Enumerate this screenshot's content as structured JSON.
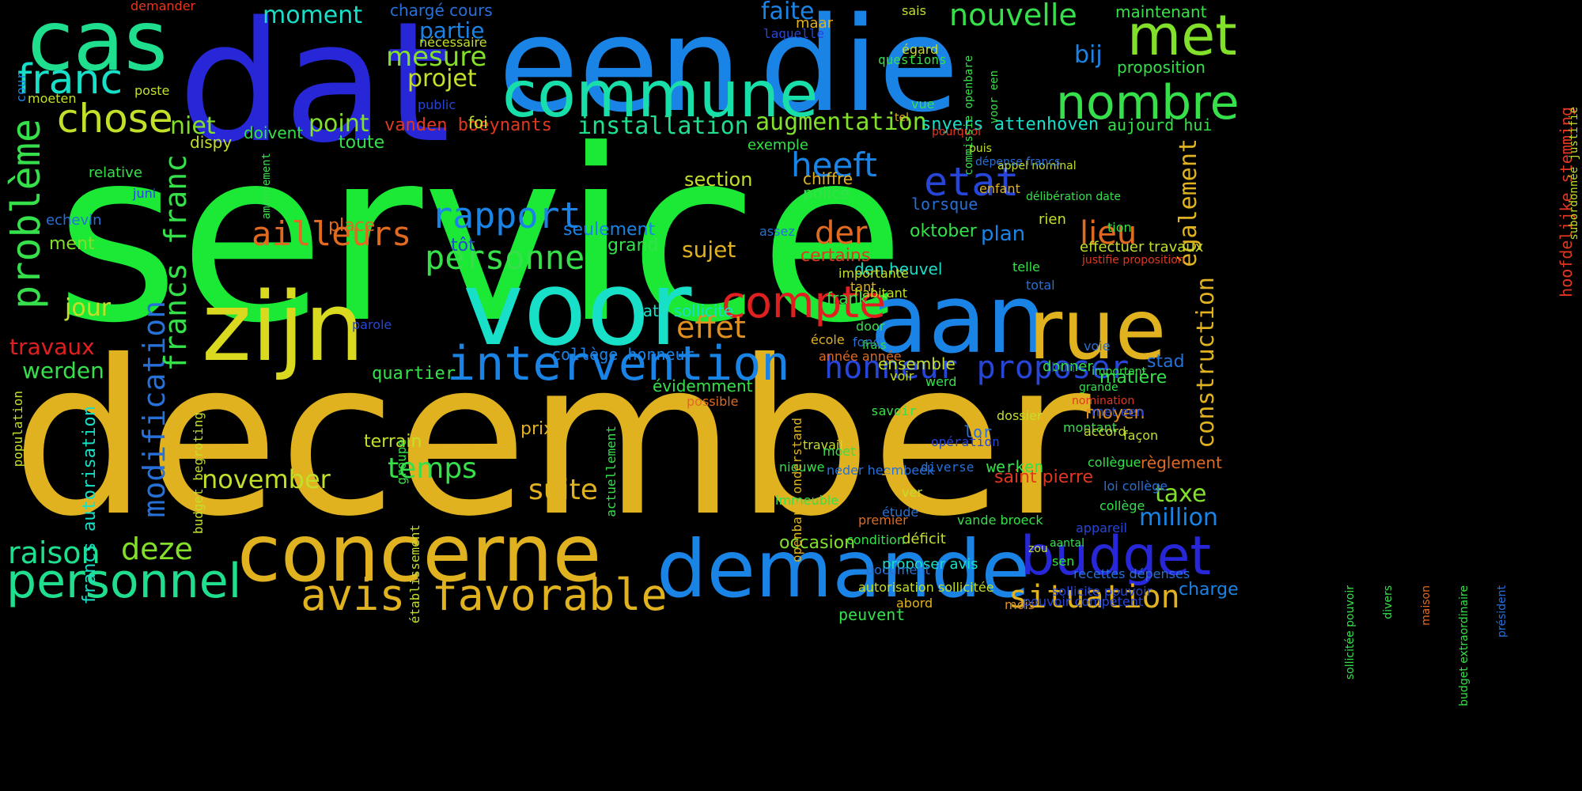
{
  "words": [
    {
      "text": "service",
      "color": "#1be936",
      "vertical": false
    },
    {
      "text": "december",
      "color": "#e0b21f",
      "vertical": false
    },
    {
      "text": "dat",
      "color": "#2727d8",
      "vertical": false
    },
    {
      "text": "een",
      "color": "#1a84e6",
      "vertical": false
    },
    {
      "text": "die",
      "color": "#1a84e6",
      "vertical": false
    },
    {
      "text": "voor",
      "color": "#18dfc8",
      "vertical": false
    },
    {
      "text": "zijn",
      "color": "#d9d920",
      "vertical": false
    },
    {
      "text": "aan",
      "color": "#1a84e6",
      "vertical": false
    },
    {
      "text": "rue",
      "color": "#e0b21f",
      "vertical": false
    },
    {
      "text": "concerne",
      "color": "#e0b21f",
      "vertical": false
    },
    {
      "text": "demande",
      "color": "#1a84e6",
      "vertical": false
    },
    {
      "text": "commune",
      "color": "#18dfaa",
      "vertical": false
    },
    {
      "text": "cas",
      "color": "#1fdf8f",
      "vertical": false
    },
    {
      "text": "met",
      "color": "#82e02a",
      "vertical": false
    },
    {
      "text": "nombre",
      "color": "#35e04a",
      "vertical": false
    },
    {
      "text": "intervention",
      "color": "#1a84e6",
      "vertical": false
    },
    {
      "text": "personnel",
      "color": "#1fdf8f",
      "vertical": false
    },
    {
      "text": "budget",
      "color": "#2727d8",
      "vertical": false
    },
    {
      "text": "avis favorable",
      "color": "#e0b21f",
      "vertical": false
    },
    {
      "text": "compte",
      "color": "#e02020",
      "vertical": false
    },
    {
      "text": "franc",
      "color": "#18dfc8",
      "vertical": false
    },
    {
      "text": "chose",
      "color": "#c3df2a",
      "vertical": false
    },
    {
      "text": "problème",
      "color": "#35e04a",
      "vertical": true
    },
    {
      "text": "etat",
      "color": "#2746d8",
      "vertical": false
    },
    {
      "text": "rapport",
      "color": "#1a84e6",
      "vertical": false
    },
    {
      "text": "ailleurs",
      "color": "#e06a20",
      "vertical": false
    },
    {
      "text": "personne",
      "color": "#35e04a",
      "vertical": false
    },
    {
      "text": "heeft",
      "color": "#1a84e6",
      "vertical": false
    },
    {
      "text": "der",
      "color": "#e06a20",
      "vertical": false
    },
    {
      "text": "lieu",
      "color": "#e06a20",
      "vertical": false
    },
    {
      "text": "honneur proposer",
      "color": "#2746d8",
      "vertical": false
    },
    {
      "text": "situation",
      "color": "#e0b21f",
      "vertical": false
    },
    {
      "text": "raison",
      "color": "#1fdf8f",
      "vertical": false
    },
    {
      "text": "deze",
      "color": "#82e02a",
      "vertical": false
    },
    {
      "text": "modification",
      "color": "#2770d8",
      "vertical": true
    },
    {
      "text": "francs franc",
      "color": "#35e04a",
      "vertical": true
    },
    {
      "text": "effet",
      "color": "#e0901f",
      "vertical": false
    },
    {
      "text": "temps",
      "color": "#35e04a",
      "vertical": false
    },
    {
      "text": "november",
      "color": "#c3df2a",
      "vertical": false
    },
    {
      "text": "suite",
      "color": "#e0b21f",
      "vertical": false
    },
    {
      "text": "également",
      "color": "#e0b21f",
      "vertical": true
    },
    {
      "text": "construction",
      "color": "#e0b21f",
      "vertical": true
    },
    {
      "text": "million",
      "color": "#1a84e6",
      "vertical": false
    },
    {
      "text": "taxe",
      "color": "#82e02a",
      "vertical": false
    },
    {
      "text": "nouvelle",
      "color": "#35e04a",
      "vertical": false
    },
    {
      "text": "mesure",
      "color": "#82e02a",
      "vertical": false
    },
    {
      "text": "projet",
      "color": "#c3df2a",
      "vertical": false
    },
    {
      "text": "partie",
      "color": "#1a84e6",
      "vertical": false
    },
    {
      "text": "moment",
      "color": "#18dfc8",
      "vertical": false
    },
    {
      "text": "faite",
      "color": "#1a84e6",
      "vertical": false
    },
    {
      "text": "bij",
      "color": "#1a84e6",
      "vertical": false
    },
    {
      "text": "point",
      "color": "#82e02a",
      "vertical": false
    },
    {
      "text": "installation",
      "color": "#1fdf8f",
      "vertical": false
    },
    {
      "text": "augmentation",
      "color": "#82e02a",
      "vertical": false
    },
    {
      "text": "niet",
      "color": "#82e02a",
      "vertical": false
    },
    {
      "text": "jour",
      "color": "#c3df2a",
      "vertical": false
    },
    {
      "text": "travaux",
      "color": "#e02020",
      "vertical": false
    },
    {
      "text": "werden",
      "color": "#35e04a",
      "vertical": false
    },
    {
      "text": "sujet",
      "color": "#e0b21f",
      "vertical": false
    },
    {
      "text": "plan",
      "color": "#1a84e6",
      "vertical": false
    },
    {
      "text": "section",
      "color": "#c3df2a",
      "vertical": false
    },
    {
      "text": "oktober",
      "color": "#35e04a",
      "vertical": false
    },
    {
      "text": "certains",
      "color": "#e03820",
      "vertical": false
    },
    {
      "text": "police",
      "color": "#35e04a",
      "vertical": false
    },
    {
      "text": "chiffre",
      "color": "#e0b21f",
      "vertical": false
    },
    {
      "text": "lorsque",
      "color": "#2770d8",
      "vertical": false
    },
    {
      "text": "quartier",
      "color": "#35e04a",
      "vertical": false
    },
    {
      "text": "terrain",
      "color": "#c3df2a",
      "vertical": false
    },
    {
      "text": "prix",
      "color": "#e0b21f",
      "vertical": false
    },
    {
      "text": "occasion",
      "color": "#82e02a",
      "vertical": false
    },
    {
      "text": "saint pierre",
      "color": "#e03820",
      "vertical": false
    },
    {
      "text": "règlement",
      "color": "#e06a20",
      "vertical": false
    },
    {
      "text": "moyen",
      "color": "#e0901f",
      "vertical": false
    },
    {
      "text": "matière",
      "color": "#35e04a",
      "vertical": false
    },
    {
      "text": "stad",
      "color": "#2770d8",
      "vertical": false
    },
    {
      "text": "charge",
      "color": "#1a84e6",
      "vertical": false
    },
    {
      "text": "snyers attenhoven",
      "color": "#18dfc8",
      "vertical": false
    },
    {
      "text": "vanden boeynants",
      "color": "#e03820",
      "vertical": false
    },
    {
      "text": "aujourd hui",
      "color": "#35e04a",
      "vertical": false
    },
    {
      "text": "maintenant",
      "color": "#35e04a",
      "vertical": false
    },
    {
      "text": "proposition",
      "color": "#35e04a",
      "vertical": false
    },
    {
      "text": "chargé cours",
      "color": "#2770d8",
      "vertical": false
    },
    {
      "text": "nécessaire",
      "color": "#c3df2a",
      "vertical": false
    },
    {
      "text": "maar",
      "color": "#e0b21f",
      "vertical": false
    },
    {
      "text": "laquelle",
      "color": "#2746d8",
      "vertical": false
    },
    {
      "text": "sais",
      "color": "#c3df2a",
      "vertical": false
    },
    {
      "text": "égard",
      "color": "#c3df2a",
      "vertical": false
    },
    {
      "text": "questions",
      "color": "#35e04a",
      "vertical": false
    },
    {
      "text": "demander",
      "color": "#e03820",
      "vertical": false
    },
    {
      "text": "poste",
      "color": "#c3df2a",
      "vertical": false
    },
    {
      "text": "moeten",
      "color": "#c3df2a",
      "vertical": false
    },
    {
      "text": "public",
      "color": "#2746d8",
      "vertical": false
    },
    {
      "text": "foi",
      "color": "#c3df2a",
      "vertical": false
    },
    {
      "text": "doivent",
      "color": "#35e04a",
      "vertical": false
    },
    {
      "text": "dispy",
      "color": "#c3df2a",
      "vertical": false
    },
    {
      "text": "toute",
      "color": "#35e04a",
      "vertical": false
    },
    {
      "text": "exemple",
      "color": "#35e04a",
      "vertical": false
    },
    {
      "text": "relative",
      "color": "#35e04a",
      "vertical": false
    },
    {
      "text": "juni",
      "color": "#2746d8",
      "vertical": false
    },
    {
      "text": "echevin",
      "color": "#2770d8",
      "vertical": false
    },
    {
      "text": "ment",
      "color": "#82e02a",
      "vertical": false
    },
    {
      "text": "place",
      "color": "#e06a20",
      "vertical": false
    },
    {
      "text": "seulement",
      "color": "#1a84e6",
      "vertical": false
    },
    {
      "text": "assez",
      "color": "#2770d8",
      "vertical": false
    },
    {
      "text": "grand",
      "color": "#35e04a",
      "vertical": false
    },
    {
      "text": "tôt",
      "color": "#2746d8",
      "vertical": false
    },
    {
      "text": "den heuvel",
      "color": "#18dfc8",
      "vertical": false
    },
    {
      "text": "importante",
      "color": "#c3df2a",
      "vertical": false
    },
    {
      "text": "tant",
      "color": "#e0b21f",
      "vertical": false
    },
    {
      "text": "habitant",
      "color": "#c3df2a",
      "vertical": false
    },
    {
      "text": "frank",
      "color": "#35e04a",
      "vertical": false
    },
    {
      "text": "date sollicite",
      "color": "#18dfc8",
      "vertical": false
    },
    {
      "text": "parole",
      "color": "#2746d8",
      "vertical": false
    },
    {
      "text": "collège honneur",
      "color": "#1a84e6",
      "vertical": false
    },
    {
      "text": "école",
      "color": "#e0b21f",
      "vertical": false
    },
    {
      "text": "année année",
      "color": "#e06a20",
      "vertical": false
    },
    {
      "text": "voie",
      "color": "#2770d8",
      "vertical": false
    },
    {
      "text": "frais",
      "color": "#35e04a",
      "vertical": false
    },
    {
      "text": "ensemble",
      "color": "#c3df2a",
      "vertical": false
    },
    {
      "text": "voir",
      "color": "#c3df2a",
      "vertical": false
    },
    {
      "text": "werd",
      "color": "#35e04a",
      "vertical": false
    },
    {
      "text": "évidemment",
      "color": "#35e04a",
      "vertical": false
    },
    {
      "text": "possible",
      "color": "#e06a20",
      "vertical": false
    },
    {
      "text": "travail",
      "color": "#c3df2a",
      "vertical": false
    },
    {
      "text": "moet",
      "color": "#35e04a",
      "vertical": false
    },
    {
      "text": "nieuwe",
      "color": "#35e04a",
      "vertical": false
    },
    {
      "text": "neder heembeek",
      "color": "#2770d8",
      "vertical": false
    },
    {
      "text": "immeuble",
      "color": "#35e04a",
      "vertical": false
    },
    {
      "text": "ver",
      "color": "#c3df2a",
      "vertical": false
    },
    {
      "text": "étude",
      "color": "#2770d8",
      "vertical": false
    },
    {
      "text": "premier",
      "color": "#e06a20",
      "vertical": false
    },
    {
      "text": "déficit",
      "color": "#c3df2a",
      "vertical": false
    },
    {
      "text": "proposer avis",
      "color": "#18dfc8",
      "vertical": false
    },
    {
      "text": "vande broeck",
      "color": "#35e04a",
      "vertical": false
    },
    {
      "text": "condition",
      "color": "#35e04a",
      "vertical": false
    },
    {
      "text": "document",
      "color": "#2770d8",
      "vertical": false
    },
    {
      "text": "autorisation sollicitée",
      "color": "#c3df2a",
      "vertical": false
    },
    {
      "text": "abord",
      "color": "#e0b21f",
      "vertical": false
    },
    {
      "text": "peuvent",
      "color": "#35e04a",
      "vertical": false
    },
    {
      "text": "mois",
      "color": "#e0901f",
      "vertical": false
    },
    {
      "text": "pouvoir compétent",
      "color": "#2746d8",
      "vertical": false
    },
    {
      "text": "sollicite pouvoir",
      "color": "#2746d8",
      "vertical": false
    },
    {
      "text": "recettes dépenses",
      "color": "#2770d8",
      "vertical": false
    },
    {
      "text": "sen",
      "color": "#35e04a",
      "vertical": false
    },
    {
      "text": "zou",
      "color": "#c3df2a",
      "vertical": false
    },
    {
      "text": "aantal",
      "color": "#35e04a",
      "vertical": false
    },
    {
      "text": "appareil",
      "color": "#2746d8",
      "vertical": false
    },
    {
      "text": "collège",
      "color": "#35e04a",
      "vertical": false
    },
    {
      "text": "loi collège",
      "color": "#2770d8",
      "vertical": false
    },
    {
      "text": "collègue",
      "color": "#35e04a",
      "vertical": false
    },
    {
      "text": "dossier",
      "color": "#c3df2a",
      "vertical": false
    },
    {
      "text": "façon",
      "color": "#c3df2a",
      "vertical": false
    },
    {
      "text": "met een",
      "color": "#2746d8",
      "vertical": false
    },
    {
      "text": "nomination",
      "color": "#e03820",
      "vertical": false
    },
    {
      "text": "grande",
      "color": "#35e04a",
      "vertical": false
    },
    {
      "text": "important",
      "color": "#35e04a",
      "vertical": false
    },
    {
      "text": "donner",
      "color": "#35e04a",
      "vertical": false
    },
    {
      "text": "hun",
      "color": "#2746d8",
      "vertical": false
    },
    {
      "text": "montant",
      "color": "#35e04a",
      "vertical": false
    },
    {
      "text": "accord",
      "color": "#c3df2a",
      "vertical": false
    },
    {
      "text": "total",
      "color": "#2770d8",
      "vertical": false
    },
    {
      "text": "telle",
      "color": "#35e04a",
      "vertical": false
    },
    {
      "text": "justifie proposition",
      "color": "#e03820",
      "vertical": false
    },
    {
      "text": "effectuer travaux",
      "color": "#c3df2a",
      "vertical": false
    },
    {
      "text": "tion",
      "color": "#35e04a",
      "vertical": false
    },
    {
      "text": "rien",
      "color": "#c3df2a",
      "vertical": false
    },
    {
      "text": "délibération date",
      "color": "#35e04a",
      "vertical": false
    },
    {
      "text": "enfant",
      "color": "#e0b21f",
      "vertical": false
    },
    {
      "text": "appel nominal",
      "color": "#c3df2a",
      "vertical": false
    },
    {
      "text": "dépense francs",
      "color": "#2770d8",
      "vertical": false
    },
    {
      "text": "puis",
      "color": "#c3df2a",
      "vertical": false
    },
    {
      "text": "pourquoi",
      "color": "#e03820",
      "vertical": false
    },
    {
      "text": "tel",
      "color": "#e0b21f",
      "vertical": false
    },
    {
      "text": "vue",
      "color": "#35e04a",
      "vertical": false
    },
    {
      "text": "door",
      "color": "#35e04a",
      "vertical": false
    },
    {
      "text": "fond",
      "color": "#2770d8",
      "vertical": false
    },
    {
      "text": "savoir",
      "color": "#35e04a",
      "vertical": false
    },
    {
      "text": "lor",
      "color": "#2770d8",
      "vertical": false
    },
    {
      "text": "werken",
      "color": "#35e04a",
      "vertical": false
    },
    {
      "text": "diverse",
      "color": "#2770d8",
      "vertical": false
    },
    {
      "text": "opération",
      "color": "#2746d8",
      "vertical": false
    },
    {
      "text": "heure",
      "color": "#e0b21f",
      "vertical": true
    },
    {
      "text": "openbare onderstand",
      "color": "#e0b21f",
      "vertical": true
    },
    {
      "text": "actuellement",
      "color": "#35e04a",
      "vertical": true
    },
    {
      "text": "établissement",
      "color": "#c3df2a",
      "vertical": true
    },
    {
      "text": "groupe",
      "color": "#35e04a",
      "vertical": true
    },
    {
      "text": "budget begroting",
      "color": "#c3df2a",
      "vertical": true
    },
    {
      "text": "francs autorisation",
      "color": "#18dfc8",
      "vertical": true
    },
    {
      "text": "population",
      "color": "#c3df2a",
      "vertical": true
    },
    {
      "text": "cour",
      "color": "#1a84e6",
      "vertical": true
    },
    {
      "text": "amendement",
      "color": "#35e04a",
      "vertical": true
    },
    {
      "text": "commissie openbare",
      "color": "#35e04a",
      "vertical": true
    },
    {
      "text": "voor een",
      "color": "#35e04a",
      "vertical": true
    },
    {
      "text": "hoofdelijke stemming",
      "color": "#e03820",
      "vertical": true
    },
    {
      "text": "subordonnée justifie",
      "color": "#c3df2a",
      "vertical": true
    },
    {
      "text": "sollicitée pouvoir",
      "color": "#35e04a",
      "vertical": true
    },
    {
      "text": "divers",
      "color": "#35e04a",
      "vertical": true
    },
    {
      "text": "maison",
      "color": "#e06a20",
      "vertical": true
    },
    {
      "text": "budget extraordinaire",
      "color": "#35e04a",
      "vertical": true
    },
    {
      "text": "président",
      "color": "#2770d8",
      "vertical": true
    }
  ]
}
